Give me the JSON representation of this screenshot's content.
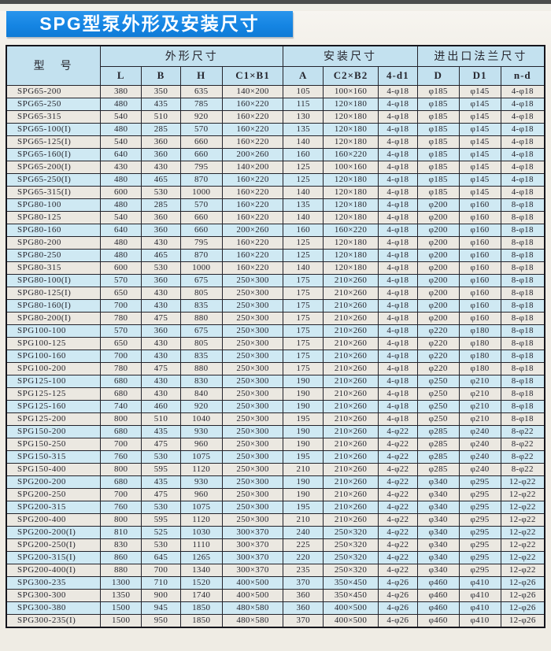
{
  "page": {
    "title": "SPG型泵外形及安装尺寸"
  },
  "colors": {
    "title_bg": "#1585e3",
    "title_text": "#ffffff",
    "header_bg": "#c3e1ef",
    "stripe_gray": "#ebe8e1",
    "stripe_blue": "#cfe9f3",
    "border": "#23232b"
  },
  "table": {
    "group_headers": {
      "model": "型　号",
      "outline": "外形尺寸",
      "install": "安装尺寸",
      "flange": "进出口法兰尺寸"
    },
    "sub_headers": [
      "L",
      "B",
      "H",
      "C1×B1",
      "A",
      "C2×B2",
      "4-d1",
      "D",
      "D1",
      "n-d"
    ],
    "rows": [
      [
        "SPG65-200",
        "380",
        "350",
        "635",
        "140×200",
        "105",
        "100×160",
        "4-φ18",
        "φ185",
        "φ145",
        "4-φ18"
      ],
      [
        "SPG65-250",
        "480",
        "435",
        "785",
        "160×220",
        "115",
        "120×180",
        "4-φ18",
        "φ185",
        "φ145",
        "4-φ18"
      ],
      [
        "SPG65-315",
        "540",
        "510",
        "920",
        "160×220",
        "130",
        "120×180",
        "4-φ18",
        "φ185",
        "φ145",
        "4-φ18"
      ],
      [
        "SPG65-100(I)",
        "480",
        "285",
        "570",
        "160×220",
        "135",
        "120×180",
        "4-φ18",
        "φ185",
        "φ145",
        "4-φ18"
      ],
      [
        "SPG65-125(I)",
        "540",
        "360",
        "660",
        "160×220",
        "140",
        "120×180",
        "4-φ18",
        "φ185",
        "φ145",
        "4-φ18"
      ],
      [
        "SPG65-160(I)",
        "640",
        "360",
        "660",
        "200×260",
        "160",
        "160×220",
        "4-φ18",
        "φ185",
        "φ145",
        "4-φ18"
      ],
      [
        "SPG65-200(I)",
        "430",
        "430",
        "795",
        "140×200",
        "125",
        "100×160",
        "4-φ18",
        "φ185",
        "φ145",
        "4-φ18"
      ],
      [
        "SPG65-250(I)",
        "480",
        "465",
        "870",
        "160×220",
        "125",
        "120×180",
        "4-φ18",
        "φ185",
        "φ145",
        "4-φ18"
      ],
      [
        "SPG65-315(I)",
        "600",
        "530",
        "1000",
        "160×220",
        "140",
        "120×180",
        "4-φ18",
        "φ185",
        "φ145",
        "4-φ18"
      ],
      [
        "SPG80-100",
        "480",
        "285",
        "570",
        "160×220",
        "135",
        "120×180",
        "4-φ18",
        "φ200",
        "φ160",
        "8-φ18"
      ],
      [
        "SPG80-125",
        "540",
        "360",
        "660",
        "160×220",
        "140",
        "120×180",
        "4-φ18",
        "φ200",
        "φ160",
        "8-φ18"
      ],
      [
        "SPG80-160",
        "640",
        "360",
        "660",
        "200×260",
        "160",
        "160×220",
        "4-φ18",
        "φ200",
        "φ160",
        "8-φ18"
      ],
      [
        "SPG80-200",
        "480",
        "430",
        "795",
        "160×220",
        "125",
        "120×180",
        "4-φ18",
        "φ200",
        "φ160",
        "8-φ18"
      ],
      [
        "SPG80-250",
        "480",
        "465",
        "870",
        "160×220",
        "125",
        "120×180",
        "4-φ18",
        "φ200",
        "φ160",
        "8-φ18"
      ],
      [
        "SPG80-315",
        "600",
        "530",
        "1000",
        "160×220",
        "140",
        "120×180",
        "4-φ18",
        "φ200",
        "φ160",
        "8-φ18"
      ],
      [
        "SPG80-100(I)",
        "570",
        "360",
        "675",
        "250×300",
        "175",
        "210×260",
        "4-φ18",
        "φ200",
        "φ160",
        "8-φ18"
      ],
      [
        "SPG80-125(I)",
        "650",
        "430",
        "805",
        "250×300",
        "175",
        "210×260",
        "4-φ18",
        "φ200",
        "φ160",
        "8-φ18"
      ],
      [
        "SPG80-160(I)",
        "700",
        "430",
        "835",
        "250×300",
        "175",
        "210×260",
        "4-φ18",
        "φ200",
        "φ160",
        "8-φ18"
      ],
      [
        "SPG80-200(I)",
        "780",
        "475",
        "880",
        "250×300",
        "175",
        "210×260",
        "4-φ18",
        "φ200",
        "φ160",
        "8-φ18"
      ],
      [
        "SPG100-100",
        "570",
        "360",
        "675",
        "250×300",
        "175",
        "210×260",
        "4-φ18",
        "φ220",
        "φ180",
        "8-φ18"
      ],
      [
        "SPG100-125",
        "650",
        "430",
        "805",
        "250×300",
        "175",
        "210×260",
        "4-φ18",
        "φ220",
        "φ180",
        "8-φ18"
      ],
      [
        "SPG100-160",
        "700",
        "430",
        "835",
        "250×300",
        "175",
        "210×260",
        "4-φ18",
        "φ220",
        "φ180",
        "8-φ18"
      ],
      [
        "SPG100-200",
        "780",
        "475",
        "880",
        "250×300",
        "175",
        "210×260",
        "4-φ18",
        "φ220",
        "φ180",
        "8-φ18"
      ],
      [
        "SPG125-100",
        "680",
        "430",
        "830",
        "250×300",
        "190",
        "210×260",
        "4-φ18",
        "φ250",
        "φ210",
        "8-φ18"
      ],
      [
        "SPG125-125",
        "680",
        "430",
        "840",
        "250×300",
        "190",
        "210×260",
        "4-φ18",
        "φ250",
        "φ210",
        "8-φ18"
      ],
      [
        "SPG125-160",
        "740",
        "460",
        "920",
        "250×300",
        "190",
        "210×260",
        "4-φ18",
        "φ250",
        "φ210",
        "8-φ18"
      ],
      [
        "SPG125-200",
        "800",
        "510",
        "1040",
        "250×300",
        "195",
        "210×260",
        "4-φ18",
        "φ250",
        "φ210",
        "8-φ18"
      ],
      [
        "SPG150-200",
        "680",
        "435",
        "930",
        "250×300",
        "190",
        "210×260",
        "4-φ22",
        "φ285",
        "φ240",
        "8-φ22"
      ],
      [
        "SPG150-250",
        "700",
        "475",
        "960",
        "250×300",
        "190",
        "210×260",
        "4-φ22",
        "φ285",
        "φ240",
        "8-φ22"
      ],
      [
        "SPG150-315",
        "760",
        "530",
        "1075",
        "250×300",
        "195",
        "210×260",
        "4-φ22",
        "φ285",
        "φ240",
        "8-φ22"
      ],
      [
        "SPG150-400",
        "800",
        "595",
        "1120",
        "250×300",
        "210",
        "210×260",
        "4-φ22",
        "φ285",
        "φ240",
        "8-φ22"
      ],
      [
        "SPG200-200",
        "680",
        "435",
        "930",
        "250×300",
        "190",
        "210×260",
        "4-φ22",
        "φ340",
        "φ295",
        "12-φ22"
      ],
      [
        "SPG200-250",
        "700",
        "475",
        "960",
        "250×300",
        "190",
        "210×260",
        "4-φ22",
        "φ340",
        "φ295",
        "12-φ22"
      ],
      [
        "SPG200-315",
        "760",
        "530",
        "1075",
        "250×300",
        "195",
        "210×260",
        "4-φ22",
        "φ340",
        "φ295",
        "12-φ22"
      ],
      [
        "SPG200-400",
        "800",
        "595",
        "1120",
        "250×300",
        "210",
        "210×260",
        "4-φ22",
        "φ340",
        "φ295",
        "12-φ22"
      ],
      [
        "SPG200-200(I)",
        "810",
        "525",
        "1030",
        "300×370",
        "240",
        "250×320",
        "4-φ22",
        "φ340",
        "φ295",
        "12-φ22"
      ],
      [
        "SPG200-250(I)",
        "830",
        "530",
        "1110",
        "300×370",
        "225",
        "250×320",
        "4-φ22",
        "φ340",
        "φ295",
        "12-φ22"
      ],
      [
        "SPG200-315(I)",
        "860",
        "645",
        "1265",
        "300×370",
        "220",
        "250×320",
        "4-φ22",
        "φ340",
        "φ295",
        "12-φ22"
      ],
      [
        "SPG200-400(I)",
        "880",
        "700",
        "1340",
        "300×370",
        "235",
        "250×320",
        "4-φ22",
        "φ340",
        "φ295",
        "12-φ22"
      ],
      [
        "SPG300-235",
        "1300",
        "710",
        "1520",
        "400×500",
        "370",
        "350×450",
        "4-φ26",
        "φ460",
        "φ410",
        "12-φ26"
      ],
      [
        "SPG300-300",
        "1350",
        "900",
        "1740",
        "400×500",
        "360",
        "350×450",
        "4-φ26",
        "φ460",
        "φ410",
        "12-φ26"
      ],
      [
        "SPG300-380",
        "1500",
        "945",
        "1850",
        "480×580",
        "360",
        "400×500",
        "4-φ26",
        "φ460",
        "φ410",
        "12-φ26"
      ],
      [
        "SPG300-235(I)",
        "1500",
        "950",
        "1850",
        "480×580",
        "370",
        "400×500",
        "4-φ26",
        "φ460",
        "φ410",
        "12-φ26"
      ]
    ]
  }
}
